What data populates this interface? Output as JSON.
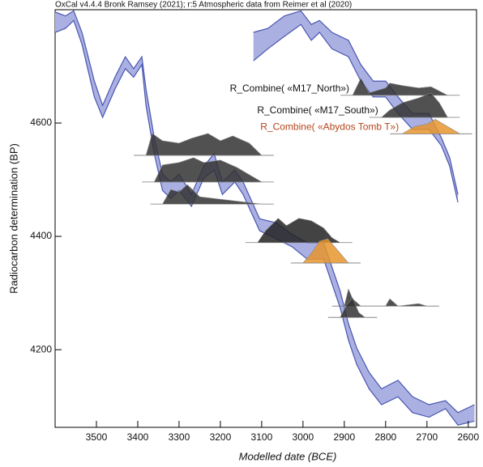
{
  "chart_data": {
    "type": "oxcal",
    "title": "OxCal v4.4.4 Bronk Ramsey (2021); r:5 Atmospheric data from Reimer et al (2020)",
    "x_label": "Modelled date (BCE)",
    "y_label": "Radiocarbon determination (BP)",
    "xlim": [
      3600,
      2580
    ],
    "ylim": [
      4063,
      4800
    ],
    "xticks": [
      3500,
      3400,
      3300,
      3200,
      3100,
      3000,
      2900,
      2800,
      2700,
      2600
    ],
    "yticks": [
      4200,
      4400,
      4600
    ],
    "curve_color": "#4a55b0",
    "curve_fill": "#aab1e2",
    "curve": [
      {
        "x": [
          3600,
          3575,
          3555,
          3535,
          3505,
          3485,
          3455,
          3430,
          3410,
          3390,
          3380,
          3360,
          3340,
          3320,
          3300,
          3270,
          3240,
          3215,
          3195,
          3165,
          3145,
          3105,
          3065,
          3025,
          2990,
          2950,
          2910,
          2890,
          2870,
          2840,
          2810,
          2770,
          2735,
          2695,
          2655,
          2625,
          2585
        ],
        "upper": [
          4796,
          4789,
          4798,
          4760,
          4674,
          4631,
          4681,
          4717,
          4696,
          4717,
          4660,
          4574,
          4510,
          4496,
          4510,
          4474,
          4524,
          4546,
          4496,
          4517,
          4496,
          4431,
          4424,
          4403,
          4389,
          4389,
          4303,
          4246,
          4203,
          4160,
          4131,
          4146,
          4117,
          4103,
          4110,
          4089,
          4103
        ],
        "lower": [
          4760,
          4767,
          4781,
          4739,
          4646,
          4610,
          4660,
          4696,
          4681,
          4703,
          4631,
          4546,
          4481,
          4467,
          4481,
          4453,
          4503,
          4517,
          4474,
          4496,
          4474,
          4410,
          4396,
          4381,
          4360,
          4360,
          4274,
          4217,
          4174,
          4131,
          4103,
          4117,
          4089,
          4081,
          4096,
          4067,
          4074
        ]
      },
      {
        "x": [
          3120,
          3085,
          3045,
          3005,
          2980,
          2960,
          2930,
          2890,
          2860,
          2830,
          2800,
          2770,
          2735,
          2695,
          2665,
          2645,
          2625
        ],
        "upper": [
          4760,
          4767,
          4789,
          4798,
          4774,
          4781,
          4760,
          4746,
          4703,
          4674,
          4674,
          4646,
          4617,
          4617,
          4574,
          4539,
          4474
        ],
        "lower": [
          4710,
          4731,
          4753,
          4774,
          4746,
          4760,
          4731,
          4717,
          4674,
          4646,
          4646,
          4617,
          4589,
          4589,
          4560,
          4524,
          4460
        ]
      }
    ],
    "distributions": [
      {
        "label": "R_Combine( «M17_North»)",
        "color": "#333333",
        "baseline": 4649,
        "x": [
          2880,
          2860,
          2840,
          2800,
          2790,
          2760,
          2720,
          2690,
          2650
        ],
        "density": [
          0,
          0.7,
          0.1,
          0.3,
          0.5,
          0.4,
          0.3,
          0.35,
          0
        ]
      },
      {
        "label": "R_Combine( «M17_South»)",
        "color": "#333333",
        "baseline": 4610,
        "x": [
          2810,
          2790,
          2760,
          2720,
          2690,
          2670,
          2650
        ],
        "density": [
          0,
          0.3,
          0.6,
          0.8,
          1,
          0.6,
          0
        ]
      },
      {
        "label": "R_Combine( «Abydos Tomb T»)",
        "color": "#e8952d",
        "label_color": "#b5451b",
        "baseline": 4581,
        "x": [
          2760,
          2730,
          2700,
          2680,
          2650,
          2620
        ],
        "density": [
          0,
          0.3,
          0.4,
          0.6,
          0.3,
          0
        ]
      },
      {
        "color": "#333333",
        "baseline": 4543,
        "x": [
          3380,
          3365,
          3340,
          3300,
          3270,
          3230,
          3200,
          3170,
          3130,
          3100
        ],
        "density": [
          0,
          0.9,
          0.6,
          0.5,
          0.7,
          0.9,
          0.6,
          0.8,
          0.5,
          0
        ]
      },
      {
        "color": "#333333",
        "baseline": 4496,
        "x": [
          3360,
          3340,
          3300,
          3265,
          3240,
          3200,
          3160,
          3130,
          3100
        ],
        "density": [
          0,
          0.7,
          0.8,
          1,
          0.8,
          0.9,
          0.6,
          0.3,
          0
        ]
      },
      {
        "color": "#333333",
        "baseline": 4457,
        "x": [
          3340,
          3320,
          3300,
          3280,
          3250,
          3200,
          3150,
          3100
        ],
        "density": [
          0,
          0.6,
          0.5,
          0.8,
          0.3,
          0.2,
          0.1,
          0
        ]
      },
      {
        "color": "#222222",
        "baseline": 4389,
        "x": [
          3110,
          3090,
          3060,
          3040,
          3010,
          2980,
          2950,
          2930,
          2910
        ],
        "density": [
          0,
          0.5,
          1,
          0.7,
          1,
          0.9,
          0.6,
          0.2,
          0
        ]
      },
      {
        "color": "#e8952d",
        "baseline": 4353,
        "x": [
          3000,
          2980,
          2960,
          2940,
          2920,
          2900,
          2890
        ],
        "density": [
          0,
          0.4,
          0.9,
          1,
          0.6,
          0.2,
          0
        ]
      },
      {
        "color": "#333333",
        "baseline": 4277,
        "x": [
          2900,
          2890,
          2880,
          2860,
          2800,
          2790,
          2770,
          2720,
          2700
        ],
        "density": [
          0,
          0.7,
          0.3,
          0,
          0,
          0.3,
          0,
          0.1,
          0
        ]
      },
      {
        "color": "#333333",
        "baseline": 4257,
        "x": [
          2910,
          2895,
          2880,
          2865,
          2850
        ],
        "density": [
          0,
          0.5,
          0.8,
          0.2,
          0
        ]
      }
    ]
  }
}
